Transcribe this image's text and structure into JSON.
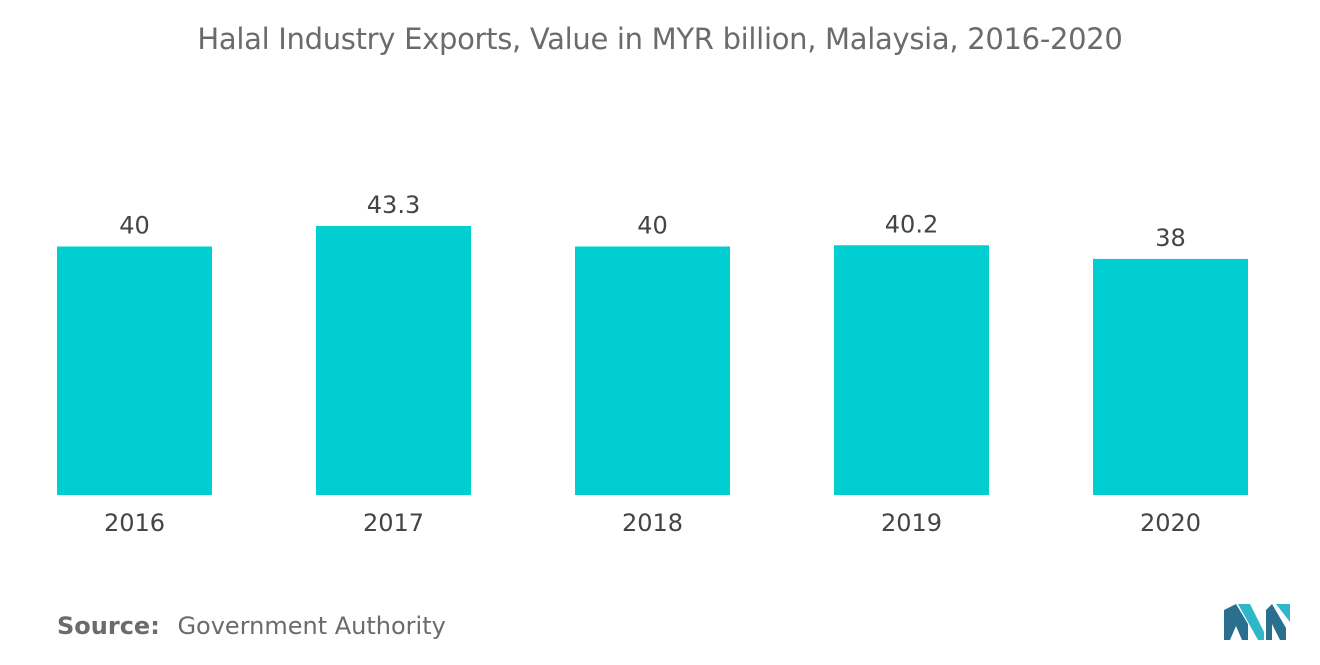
{
  "title": "Halal Industry Exports, Value in MYR billion, Malaysia, 2016-2020",
  "source": {
    "label": "Source:",
    "text": "Government Authority"
  },
  "colors": {
    "bar": "#00CED1",
    "text": "#444444",
    "title": "#6b6b6b",
    "logo_dark": "#2b6f8e",
    "logo_light": "#2fb6c9"
  },
  "chart_data": {
    "type": "bar",
    "title": "Halal Industry Exports, Value in MYR billion, Malaysia, 2016-2020",
    "categories": [
      "2016",
      "2017",
      "2018",
      "2019",
      "2020"
    ],
    "values": [
      40,
      43.3,
      40,
      40.2,
      38
    ],
    "data_labels": [
      "40",
      "43.3",
      "40",
      "40.2",
      "38"
    ],
    "xlabel": "",
    "ylabel": "",
    "ylim": [
      0,
      43.3
    ],
    "grid": false,
    "legend": "none"
  }
}
